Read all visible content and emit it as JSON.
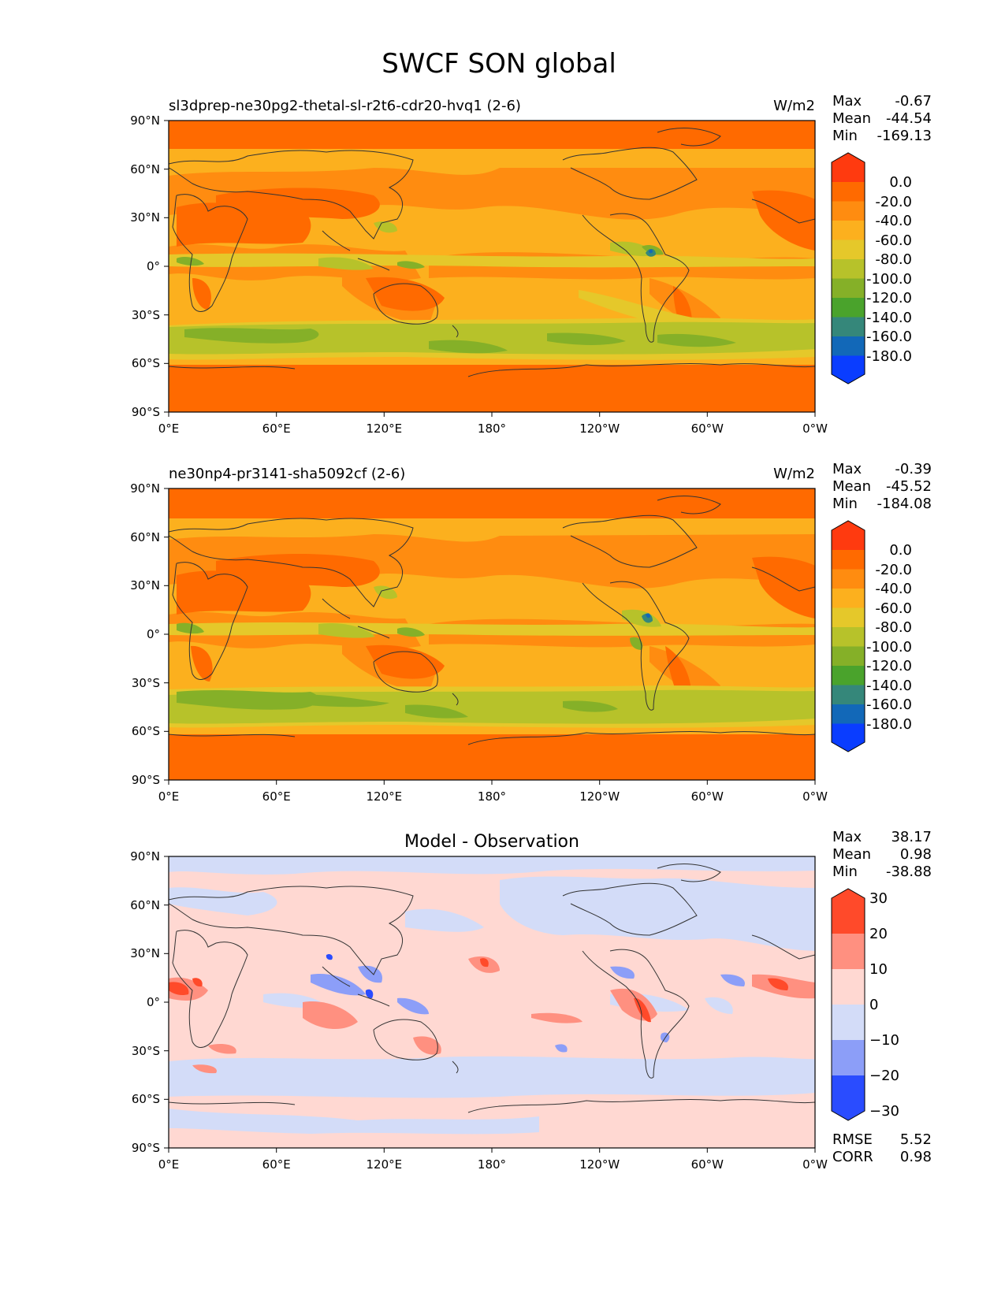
{
  "figure": {
    "title": "SWCF SON global",
    "lon_ticks": [
      "0°E",
      "60°E",
      "120°E",
      "180°",
      "120°W",
      "60°W",
      "0°W"
    ],
    "lat_ticks": [
      "90°N",
      "60°N",
      "30°N",
      "0°",
      "30°S",
      "60°S",
      "90°S"
    ]
  },
  "panels": [
    {
      "title": "sl3dprep-ne30pg2-thetal-sl-r2t6-cdr20-hvq1 (2-6)",
      "units": "W/m2",
      "stats": {
        "max_label": "Max",
        "max": "-0.67",
        "mean_label": "Mean",
        "mean": "-44.54",
        "min_label": "Min",
        "min": "-169.13"
      },
      "colorbar_labels": [
        "0.0",
        "-20.0",
        "-40.0",
        "-60.0",
        "-80.0",
        "-100.0",
        "-120.0",
        "-140.0",
        "-160.0",
        "-180.0"
      ],
      "colorbar_colors": [
        "#ff3a0f",
        "#ff6a00",
        "#ff8c10",
        "#fcb01e",
        "#e5c82a",
        "#b7c22a",
        "#85b028",
        "#4aa32c",
        "#35877a",
        "#1268b8",
        "#0a3dff"
      ]
    },
    {
      "title": "ne30np4-pr3141-sha5092cf (2-6)",
      "units": "W/m2",
      "stats": {
        "max_label": "Max",
        "max": "-0.39",
        "mean_label": "Mean",
        "mean": "-45.52",
        "min_label": "Min",
        "min": "-184.08"
      },
      "colorbar_labels": [
        "0.0",
        "-20.0",
        "-40.0",
        "-60.0",
        "-80.0",
        "-100.0",
        "-120.0",
        "-140.0",
        "-160.0",
        "-180.0"
      ],
      "colorbar_colors": [
        "#ff3a0f",
        "#ff6a00",
        "#ff8c10",
        "#fcb01e",
        "#e5c82a",
        "#b7c22a",
        "#85b028",
        "#4aa32c",
        "#35877a",
        "#1268b8",
        "#0a3dff"
      ]
    },
    {
      "title": "Model - Observation",
      "units": "",
      "stats": {
        "max_label": "Max",
        "max": "38.17",
        "mean_label": "Mean",
        "mean": "0.98",
        "min_label": "Min",
        "min": "-38.88"
      },
      "colorbar_labels": [
        "30",
        "20",
        "10",
        "0",
        "−10",
        "−20",
        "−30"
      ],
      "colorbar_colors": [
        "#ff4a2a",
        "#ff9080",
        "#ffd8d2",
        "#d3dcf8",
        "#8c9ef8",
        "#2a4cff"
      ],
      "rmse_label": "RMSE",
      "rmse": "5.52",
      "corr_label": "CORR",
      "corr": "0.98"
    }
  ],
  "colors": {
    "field_base": "#fcb01e",
    "polar_band": "#ff6a00",
    "diff_base": "#ffd8d2",
    "diff_neg": "#d3dcf8",
    "coast": "#333333"
  }
}
